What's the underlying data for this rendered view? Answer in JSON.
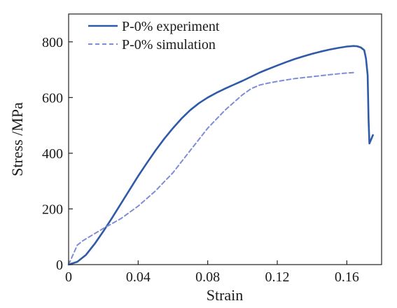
{
  "chart_data": {
    "type": "line",
    "xlabel": "Strain",
    "ylabel": "Stress /MPa",
    "xlim": [
      0,
      0.18
    ],
    "ylim": [
      0,
      900
    ],
    "xticks": [
      "0",
      "0.04",
      "0.08",
      "0.12",
      "0.16"
    ],
    "xtick_values": [
      0,
      0.04,
      0.08,
      0.12,
      0.16
    ],
    "yticks": [
      "0",
      "200",
      "400",
      "600",
      "800"
    ],
    "ytick_values": [
      0,
      200,
      400,
      600,
      800
    ],
    "legend_position": "top-left",
    "grid": false,
    "series": [
      {
        "name": "P-0% experiment",
        "style": "solid",
        "color": "#2f5aa8",
        "x": [
          0,
          0.005,
          0.01,
          0.015,
          0.02,
          0.025,
          0.03,
          0.035,
          0.04,
          0.045,
          0.05,
          0.055,
          0.06,
          0.065,
          0.07,
          0.075,
          0.08,
          0.085,
          0.09,
          0.095,
          0.1,
          0.105,
          0.11,
          0.115,
          0.12,
          0.125,
          0.13,
          0.135,
          0.14,
          0.145,
          0.15,
          0.155,
          0.16,
          0.164,
          0.166,
          0.168,
          0.17,
          0.171,
          0.172,
          0.1725,
          0.173,
          0.174,
          0.175
        ],
        "y": [
          0,
          10,
          35,
          75,
          120,
          168,
          218,
          268,
          318,
          365,
          410,
          452,
          490,
          525,
          555,
          580,
          600,
          617,
          632,
          646,
          660,
          675,
          690,
          703,
          715,
          727,
          738,
          748,
          757,
          765,
          772,
          778,
          783,
          785,
          784,
          780,
          770,
          740,
          680,
          520,
          435,
          450,
          465
        ]
      },
      {
        "name": "P-0% simulation",
        "style": "dashed",
        "color": "#7f8cd6",
        "x": [
          0,
          0.005,
          0.008,
          0.012,
          0.02,
          0.03,
          0.04,
          0.05,
          0.06,
          0.07,
          0.08,
          0.09,
          0.1,
          0.105,
          0.11,
          0.115,
          0.12,
          0.13,
          0.14,
          0.15,
          0.16,
          0.165
        ],
        "y": [
          0,
          70,
          85,
          100,
          130,
          165,
          210,
          265,
          330,
          410,
          490,
          555,
          610,
          632,
          645,
          652,
          658,
          668,
          675,
          682,
          688,
          690
        ]
      }
    ]
  }
}
